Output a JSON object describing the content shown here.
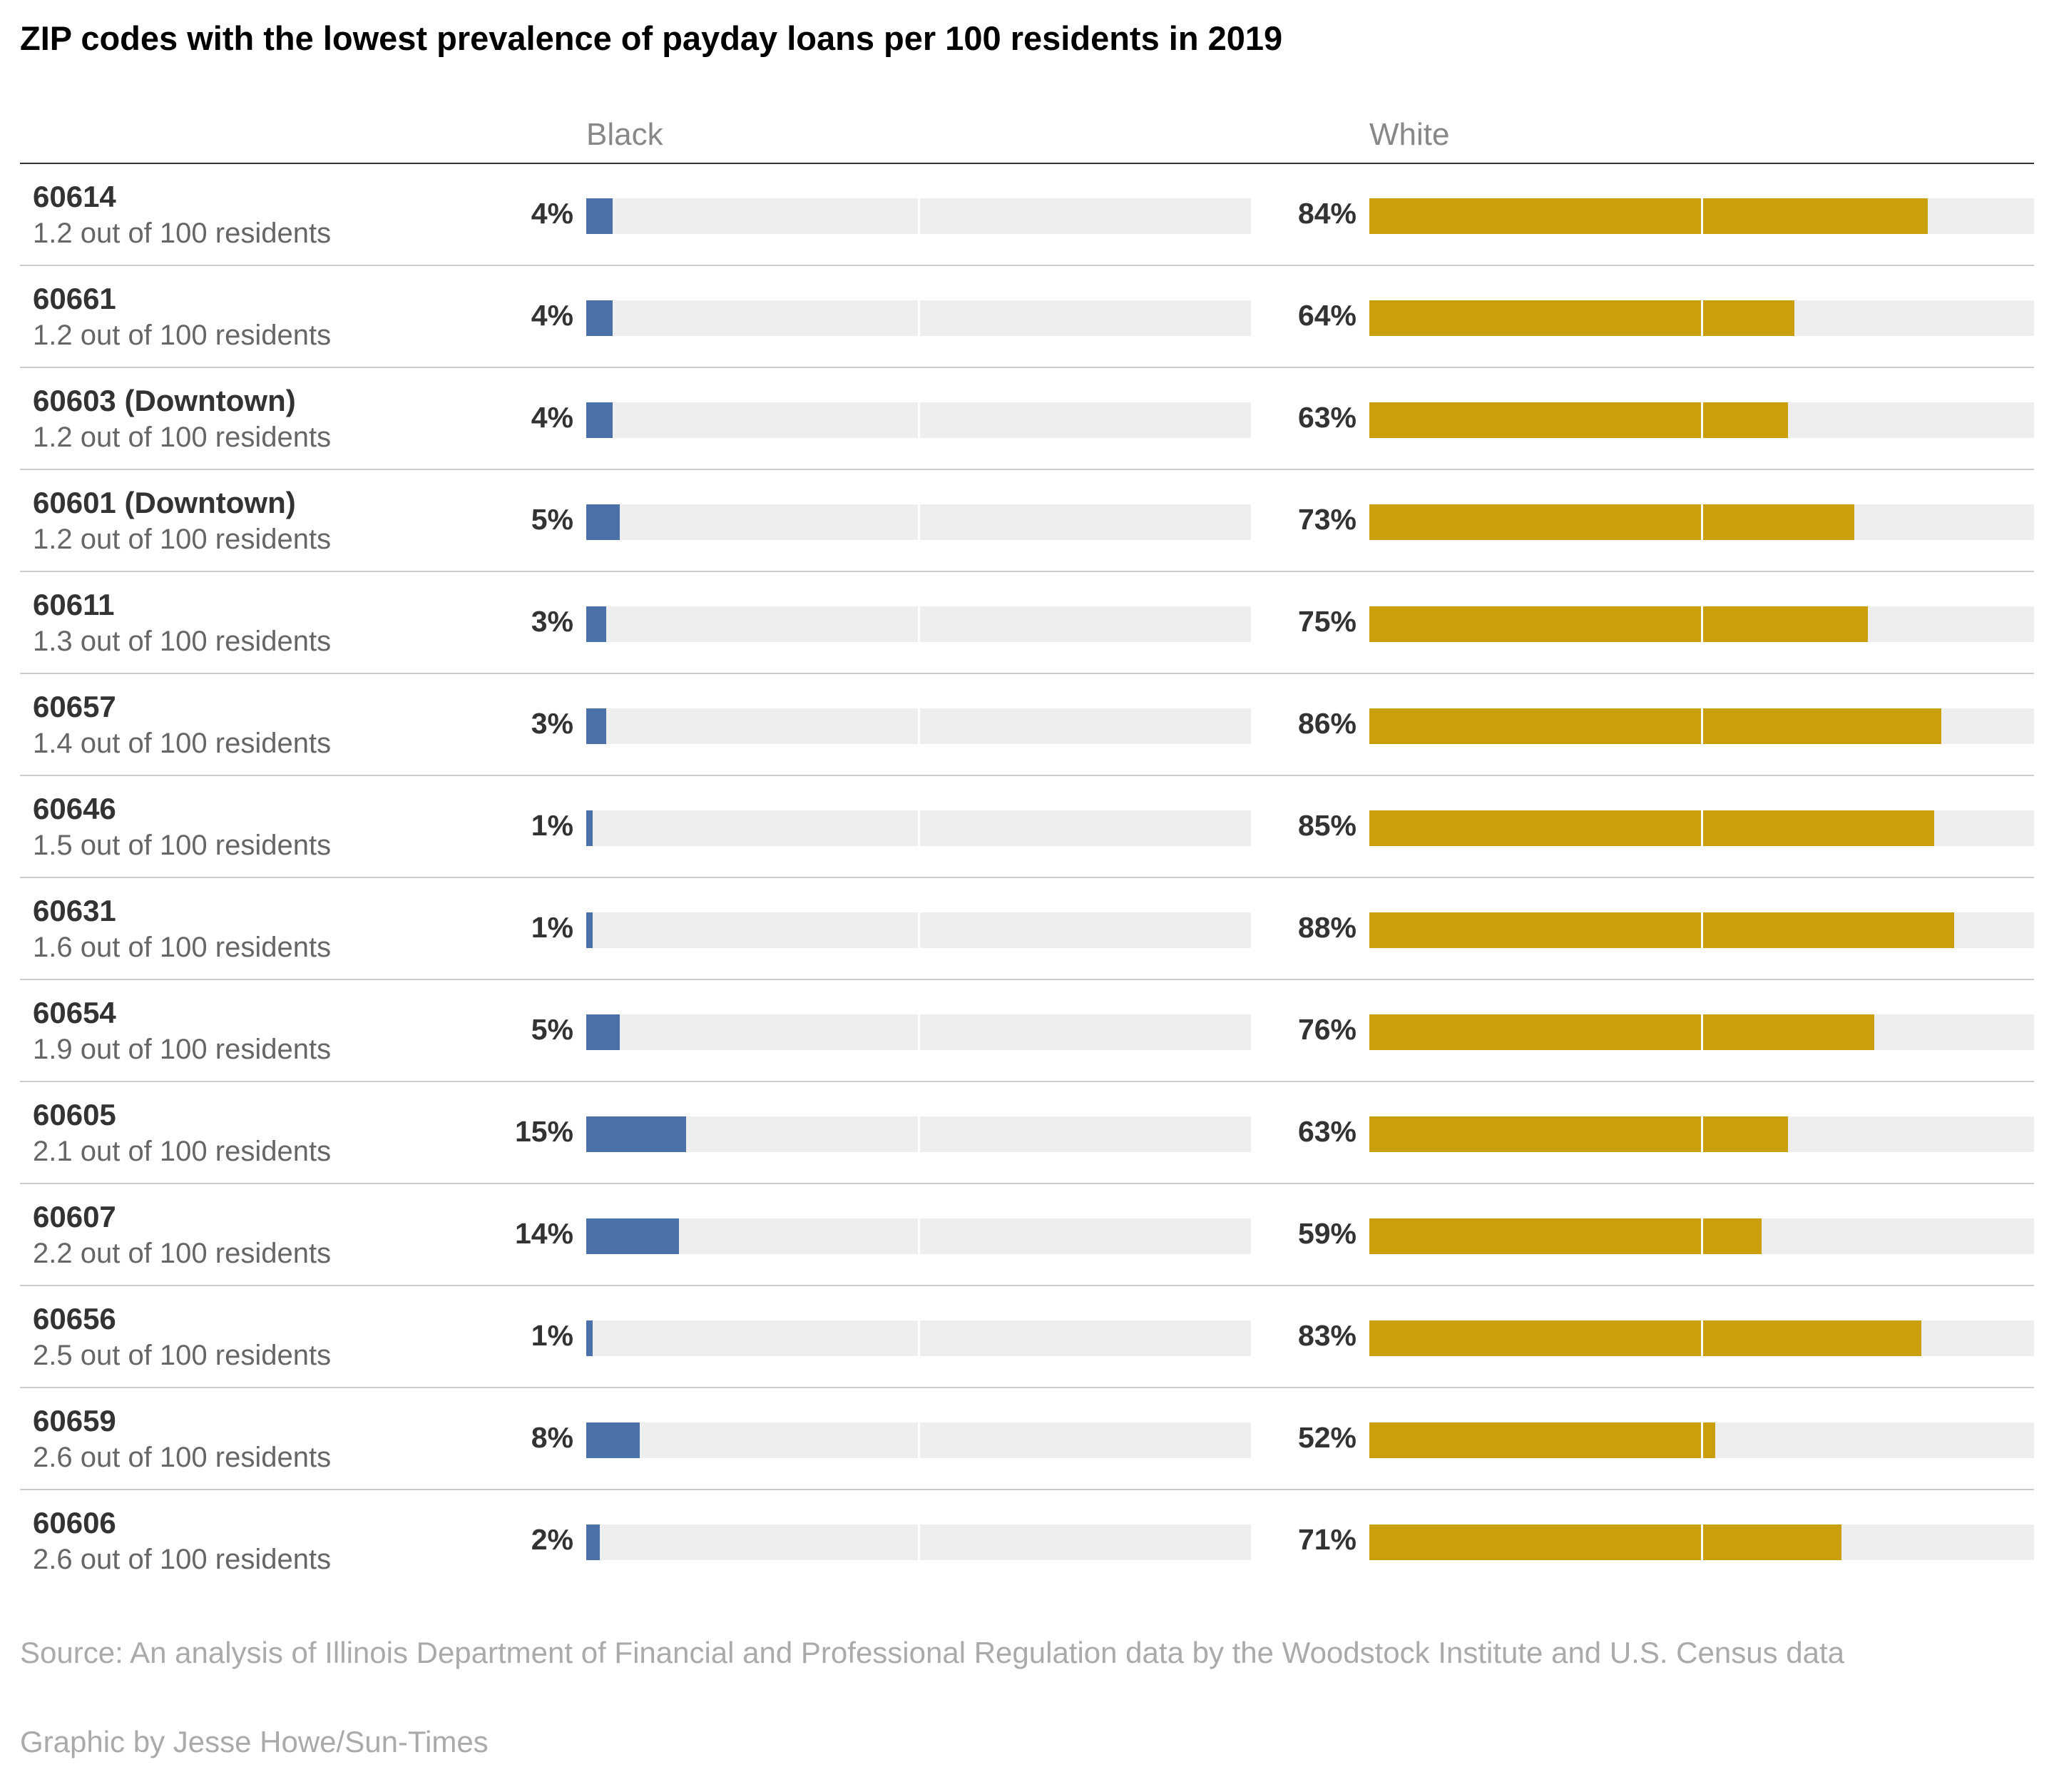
{
  "title": "ZIP codes with the lowest prevalence of payday loans per 100 residents in 2019",
  "columns": {
    "black": "Black",
    "white": "White"
  },
  "source": "Source: An analysis of Illinois Department of Financial and Professional Regulation data by the Woodstock Institute and U.S. Census data",
  "credit": "Graphic by Jesse Howe/Sun-Times",
  "colors": {
    "black_bar": "#4a72a8",
    "white_bar": "#c9a00c",
    "track": "#eeeeee"
  },
  "chart_data": {
    "type": "bar",
    "title": "ZIP codes with the lowest prevalence of payday loans per 100 residents in 2019",
    "xlim": [
      0,
      100
    ],
    "categories": [
      "60614",
      "60661",
      "60603 (Downtown)",
      "60601 (Downtown)",
      "60611",
      "60657",
      "60646",
      "60631",
      "60654",
      "60605",
      "60607",
      "60656",
      "60659",
      "60606"
    ],
    "series": [
      {
        "name": "Black",
        "values": [
          4,
          4,
          4,
          5,
          3,
          3,
          1,
          1,
          5,
          15,
          14,
          1,
          8,
          2
        ]
      },
      {
        "name": "White",
        "values": [
          84,
          64,
          63,
          73,
          75,
          86,
          85,
          88,
          76,
          63,
          59,
          83,
          52,
          71
        ]
      }
    ],
    "rows": [
      {
        "zip": "60614",
        "rate": "1.2 out of 100 residents",
        "black": 4,
        "black_label": "4%",
        "white": 84,
        "white_label": "84%"
      },
      {
        "zip": "60661",
        "rate": "1.2 out of 100 residents",
        "black": 4,
        "black_label": "4%",
        "white": 64,
        "white_label": "64%"
      },
      {
        "zip": "60603 (Downtown)",
        "rate": "1.2 out of 100 residents",
        "black": 4,
        "black_label": "4%",
        "white": 63,
        "white_label": "63%"
      },
      {
        "zip": "60601 (Downtown)",
        "rate": "1.2 out of 100 residents",
        "black": 5,
        "black_label": "5%",
        "white": 73,
        "white_label": "73%"
      },
      {
        "zip": "60611",
        "rate": "1.3 out of 100 residents",
        "black": 3,
        "black_label": "3%",
        "white": 75,
        "white_label": "75%"
      },
      {
        "zip": "60657",
        "rate": "1.4 out of 100 residents",
        "black": 3,
        "black_label": "3%",
        "white": 86,
        "white_label": "86%"
      },
      {
        "zip": "60646",
        "rate": "1.5 out of 100 residents",
        "black": 1,
        "black_label": "1%",
        "white": 85,
        "white_label": "85%"
      },
      {
        "zip": "60631",
        "rate": "1.6 out of 100 residents",
        "black": 1,
        "black_label": "1%",
        "white": 88,
        "white_label": "88%"
      },
      {
        "zip": "60654",
        "rate": "1.9 out of 100 residents",
        "black": 5,
        "black_label": "5%",
        "white": 76,
        "white_label": "76%"
      },
      {
        "zip": "60605",
        "rate": "2.1 out of 100 residents",
        "black": 15,
        "black_label": "15%",
        "white": 63,
        "white_label": "63%"
      },
      {
        "zip": "60607",
        "rate": "2.2 out of 100 residents",
        "black": 14,
        "black_label": "14%",
        "white": 59,
        "white_label": "59%"
      },
      {
        "zip": "60656",
        "rate": "2.5 out of 100 residents",
        "black": 1,
        "black_label": "1%",
        "white": 83,
        "white_label": "83%"
      },
      {
        "zip": "60659",
        "rate": "2.6 out of 100 residents",
        "black": 8,
        "black_label": "8%",
        "white": 52,
        "white_label": "52%"
      },
      {
        "zip": "60606",
        "rate": "2.6 out of 100 residents",
        "black": 2,
        "black_label": "2%",
        "white": 71,
        "white_label": "71%"
      }
    ]
  }
}
